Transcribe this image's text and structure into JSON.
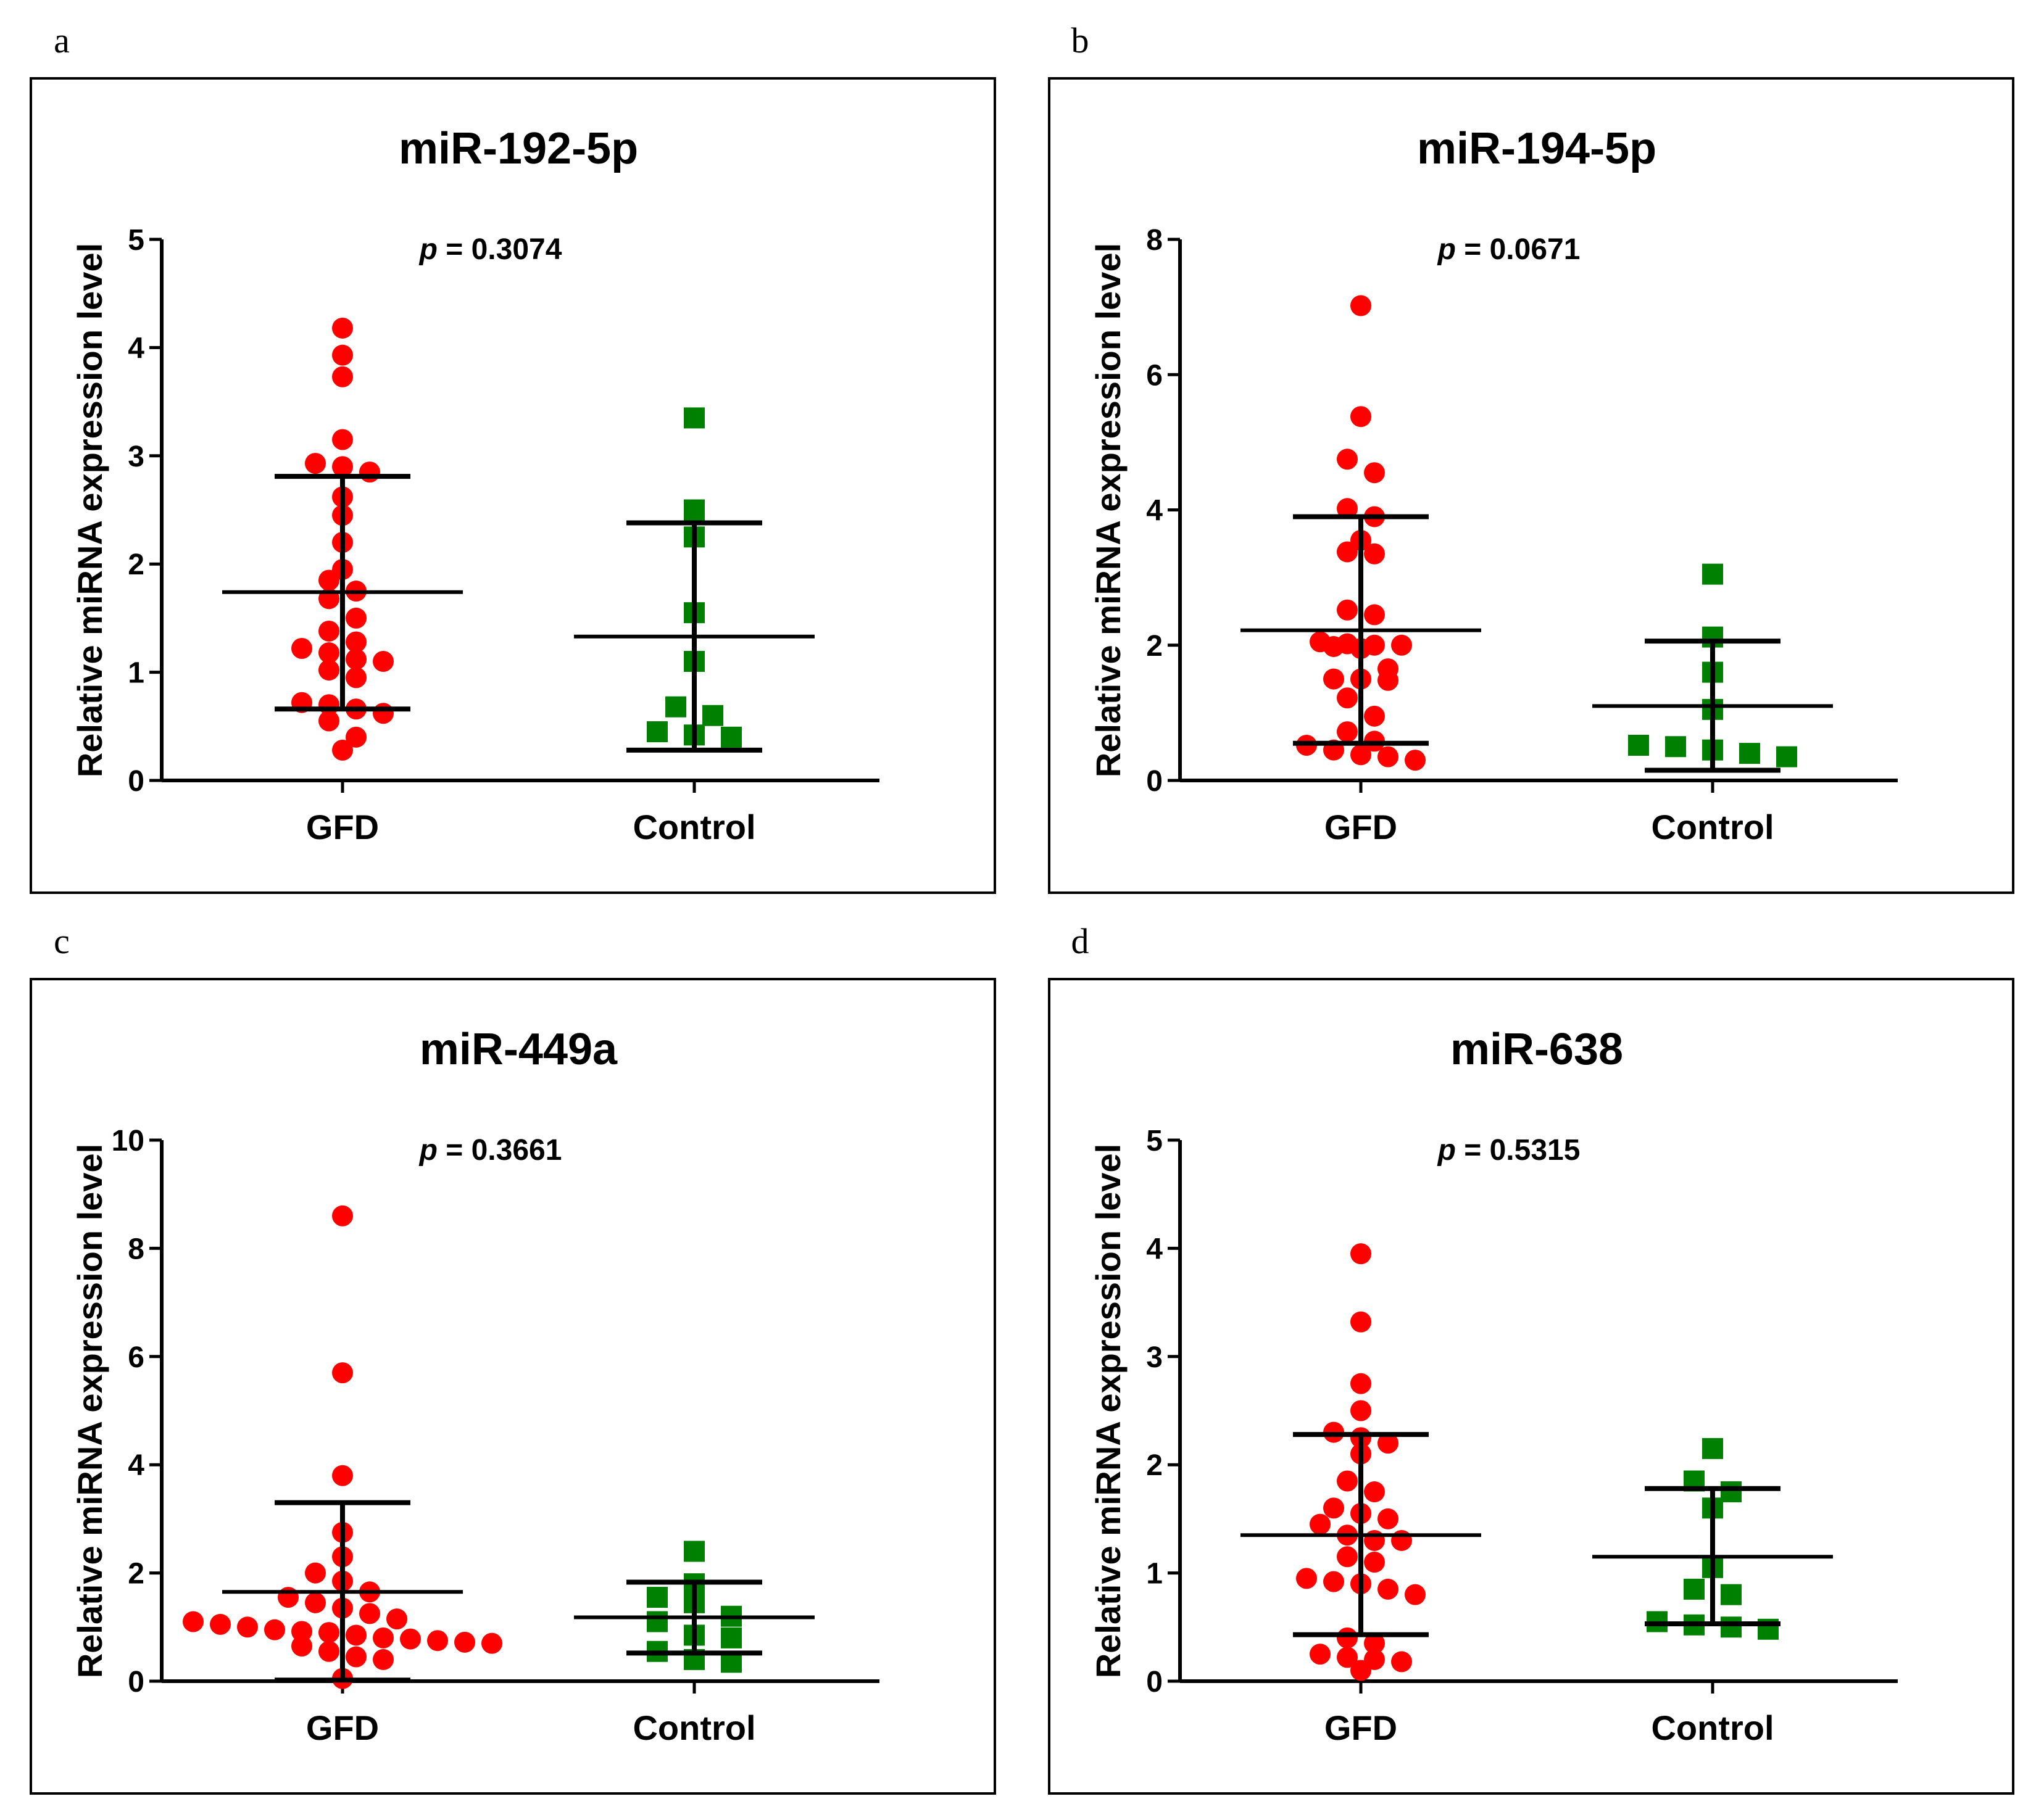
{
  "chart_data": [
    {
      "panel": "a",
      "type": "scatter",
      "title": "miR-192-5p",
      "p_label": "p",
      "p_value": "= 0.3074",
      "ylabel": "Relative miRNA expression level",
      "categories": [
        "GFD",
        "Control"
      ],
      "ylim": [
        0,
        5
      ],
      "yticks": [
        0,
        1,
        2,
        3,
        4,
        5
      ],
      "colors": {
        "GFD": "#ff0000",
        "Control": "#008000"
      },
      "markers": {
        "GFD": "circle",
        "Control": "square"
      },
      "series": [
        {
          "name": "GFD",
          "values": [
            4.18,
            3.93,
            3.73,
            3.15,
            2.93,
            2.9,
            2.85,
            2.62,
            2.45,
            2.2,
            1.95,
            1.85,
            1.75,
            1.68,
            1.5,
            1.38,
            1.28,
            1.22,
            1.18,
            1.12,
            1.1,
            1.02,
            0.95,
            0.72,
            0.7,
            0.66,
            0.62,
            0.55,
            0.4,
            0.28
          ],
          "mean": 1.74,
          "sd_low": 0.66,
          "sd_high": 2.81
        },
        {
          "name": "Control",
          "values": [
            3.35,
            2.5,
            2.25,
            1.55,
            1.1,
            0.68,
            0.6,
            0.45,
            0.42,
            0.4
          ],
          "mean": 1.33,
          "sd_low": 0.28,
          "sd_high": 2.38
        }
      ]
    },
    {
      "panel": "b",
      "type": "scatter",
      "title": "miR-194-5p",
      "p_label": "p",
      "p_value": "= 0.0671",
      "ylabel": "Relative miRNA expression level",
      "categories": [
        "GFD",
        "Control"
      ],
      "ylim": [
        0,
        8
      ],
      "yticks": [
        0,
        2,
        4,
        6,
        8
      ],
      "colors": {
        "GFD": "#ff0000",
        "Control": "#008000"
      },
      "markers": {
        "GFD": "circle",
        "Control": "square"
      },
      "series": [
        {
          "name": "GFD",
          "values": [
            7.02,
            5.38,
            4.75,
            4.55,
            4.02,
            3.9,
            3.55,
            3.38,
            3.35,
            2.52,
            2.45,
            2.05,
            2.02,
            2.0,
            2.0,
            1.98,
            1.95,
            1.65,
            1.5,
            1.5,
            1.48,
            1.22,
            0.95,
            0.72,
            0.58,
            0.52,
            0.45,
            0.38,
            0.35,
            0.3
          ],
          "mean": 2.22,
          "sd_low": 0.55,
          "sd_high": 3.9
        },
        {
          "name": "Control",
          "values": [
            3.05,
            2.12,
            1.6,
            1.05,
            0.52,
            0.5,
            0.45,
            0.4,
            0.35
          ],
          "mean": 1.1,
          "sd_low": 0.15,
          "sd_high": 2.06
        }
      ]
    },
    {
      "panel": "c",
      "type": "scatter",
      "title": "miR-449a",
      "p_label": "p",
      "p_value": "= 0.3661",
      "ylabel": "Relative miRNA expression level",
      "categories": [
        "GFD",
        "Control"
      ],
      "ylim": [
        0,
        10
      ],
      "yticks": [
        0,
        2,
        4,
        6,
        8,
        10
      ],
      "colors": {
        "GFD": "#ff0000",
        "Control": "#008000"
      },
      "markers": {
        "GFD": "circle",
        "Control": "square"
      },
      "series": [
        {
          "name": "GFD",
          "values": [
            8.6,
            5.7,
            3.8,
            2.75,
            2.3,
            2.0,
            1.85,
            1.65,
            1.55,
            1.45,
            1.35,
            1.25,
            1.15,
            1.1,
            1.05,
            1.0,
            0.95,
            0.92,
            0.9,
            0.85,
            0.8,
            0.78,
            0.75,
            0.72,
            0.7,
            0.65,
            0.55,
            0.45,
            0.4,
            0.05
          ],
          "mean": 1.65,
          "sd_low": 0.02,
          "sd_high": 3.3
        },
        {
          "name": "Control",
          "values": [
            2.4,
            1.8,
            1.55,
            1.45,
            1.2,
            1.1,
            0.85,
            0.8,
            0.55,
            0.4,
            0.35
          ],
          "mean": 1.18,
          "sd_low": 0.52,
          "sd_high": 1.83
        }
      ]
    },
    {
      "panel": "d",
      "type": "scatter",
      "title": "miR-638",
      "p_label": "p",
      "p_value": "= 0.5315",
      "ylabel": "Relative miRNA expression level",
      "categories": [
        "GFD",
        "Control"
      ],
      "ylim": [
        0,
        5
      ],
      "yticks": [
        0,
        1,
        2,
        3,
        4,
        5
      ],
      "colors": {
        "GFD": "#ff0000",
        "Control": "#008000"
      },
      "markers": {
        "GFD": "circle",
        "Control": "square"
      },
      "series": [
        {
          "name": "GFD",
          "values": [
            3.95,
            3.32,
            2.75,
            2.5,
            2.3,
            2.25,
            2.2,
            2.1,
            1.85,
            1.75,
            1.6,
            1.55,
            1.5,
            1.45,
            1.35,
            1.3,
            1.3,
            1.15,
            1.1,
            0.95,
            0.92,
            0.9,
            0.85,
            0.8,
            0.4,
            0.35,
            0.25,
            0.22,
            0.2,
            0.18,
            0.1
          ],
          "mean": 1.35,
          "sd_low": 0.43,
          "sd_high": 2.28
        },
        {
          "name": "Control",
          "values": [
            2.15,
            1.85,
            1.75,
            1.6,
            1.05,
            0.85,
            0.8,
            0.55,
            0.52,
            0.5,
            0.48
          ],
          "mean": 1.15,
          "sd_low": 0.53,
          "sd_high": 1.78
        }
      ]
    }
  ]
}
